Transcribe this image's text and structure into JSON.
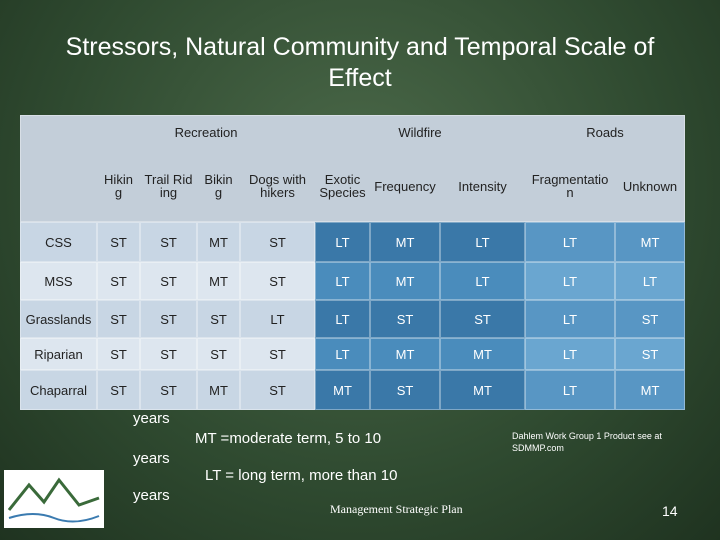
{
  "title": "Stressors, Natural Community and Temporal Scale of Effect",
  "table": {
    "groups": [
      "Recreation",
      "Wildfire",
      "Roads"
    ],
    "columns": [
      "Hiking",
      "Trail Riding",
      "Biking",
      "Dogs with hikers",
      "Exotic Species",
      "Frequency",
      "Intensity",
      "Fragmentation",
      "Unknown"
    ],
    "rows": [
      [
        "CSS",
        "ST",
        "ST",
        "MT",
        "ST",
        "LT",
        "MT",
        "LT",
        "LT",
        "MT"
      ],
      [
        "MSS",
        "ST",
        "ST",
        "MT",
        "ST",
        "LT",
        "MT",
        "LT",
        "LT",
        "LT"
      ],
      [
        "Grasslands",
        "ST",
        "ST",
        "ST",
        "LT",
        "LT",
        "ST",
        "ST",
        "LT",
        "ST"
      ],
      [
        "Riparian",
        "ST",
        "ST",
        "ST",
        "ST",
        "LT",
        "MT",
        "MT",
        "LT",
        "ST"
      ],
      [
        "Chaparral",
        "ST",
        "ST",
        "MT",
        "ST",
        "MT",
        "ST",
        "MT",
        "LT",
        "MT"
      ]
    ]
  },
  "notes": {
    "years": [
      "years",
      "years",
      "years"
    ],
    "mt": "MT =moderate term, 5 to 10",
    "lt": "LT = long term, more than 10",
    "credit": "Dahlem Work Group 1 Product see at SDMMP.com",
    "footer": "Management Strategic Plan",
    "page": "14"
  }
}
